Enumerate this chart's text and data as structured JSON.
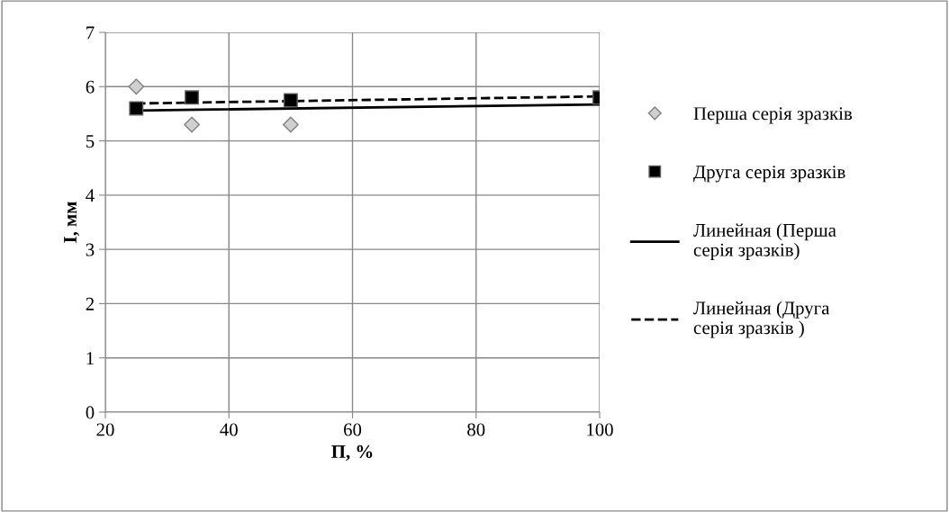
{
  "chart_data": {
    "type": "scatter",
    "xlabel": "П, %",
    "ylabel": "I, мм",
    "xlim": [
      20,
      100
    ],
    "xticks": [
      20,
      40,
      60,
      80,
      100
    ],
    "ylim": [
      0,
      7
    ],
    "yticks": [
      0,
      1,
      2,
      3,
      4,
      5,
      6,
      7
    ],
    "grid": true,
    "legend": "right",
    "series": [
      {
        "name": "Перша серія зразків",
        "marker": "diamond",
        "color": "#d0d0d0",
        "x": [
          25,
          34,
          50
        ],
        "values": [
          6.0,
          5.3,
          5.3
        ]
      },
      {
        "name": "Друга серія зразків",
        "marker": "square",
        "color": "#000000",
        "x": [
          25,
          34,
          50,
          100
        ],
        "values": [
          5.6,
          5.8,
          5.75,
          5.8
        ]
      },
      {
        "name": "Линейная (Перша серія зразків)",
        "type": "line",
        "marker": "none",
        "line_style": "solid",
        "color": "#000000",
        "x": [
          25,
          100
        ],
        "values": [
          5.56,
          5.67
        ]
      },
      {
        "name": "Линейная (Друга серія зразків )",
        "type": "line",
        "marker": "none",
        "line_style": "dashed",
        "color": "#000000",
        "x": [
          25,
          100
        ],
        "values": [
          5.69,
          5.82
        ]
      }
    ]
  }
}
